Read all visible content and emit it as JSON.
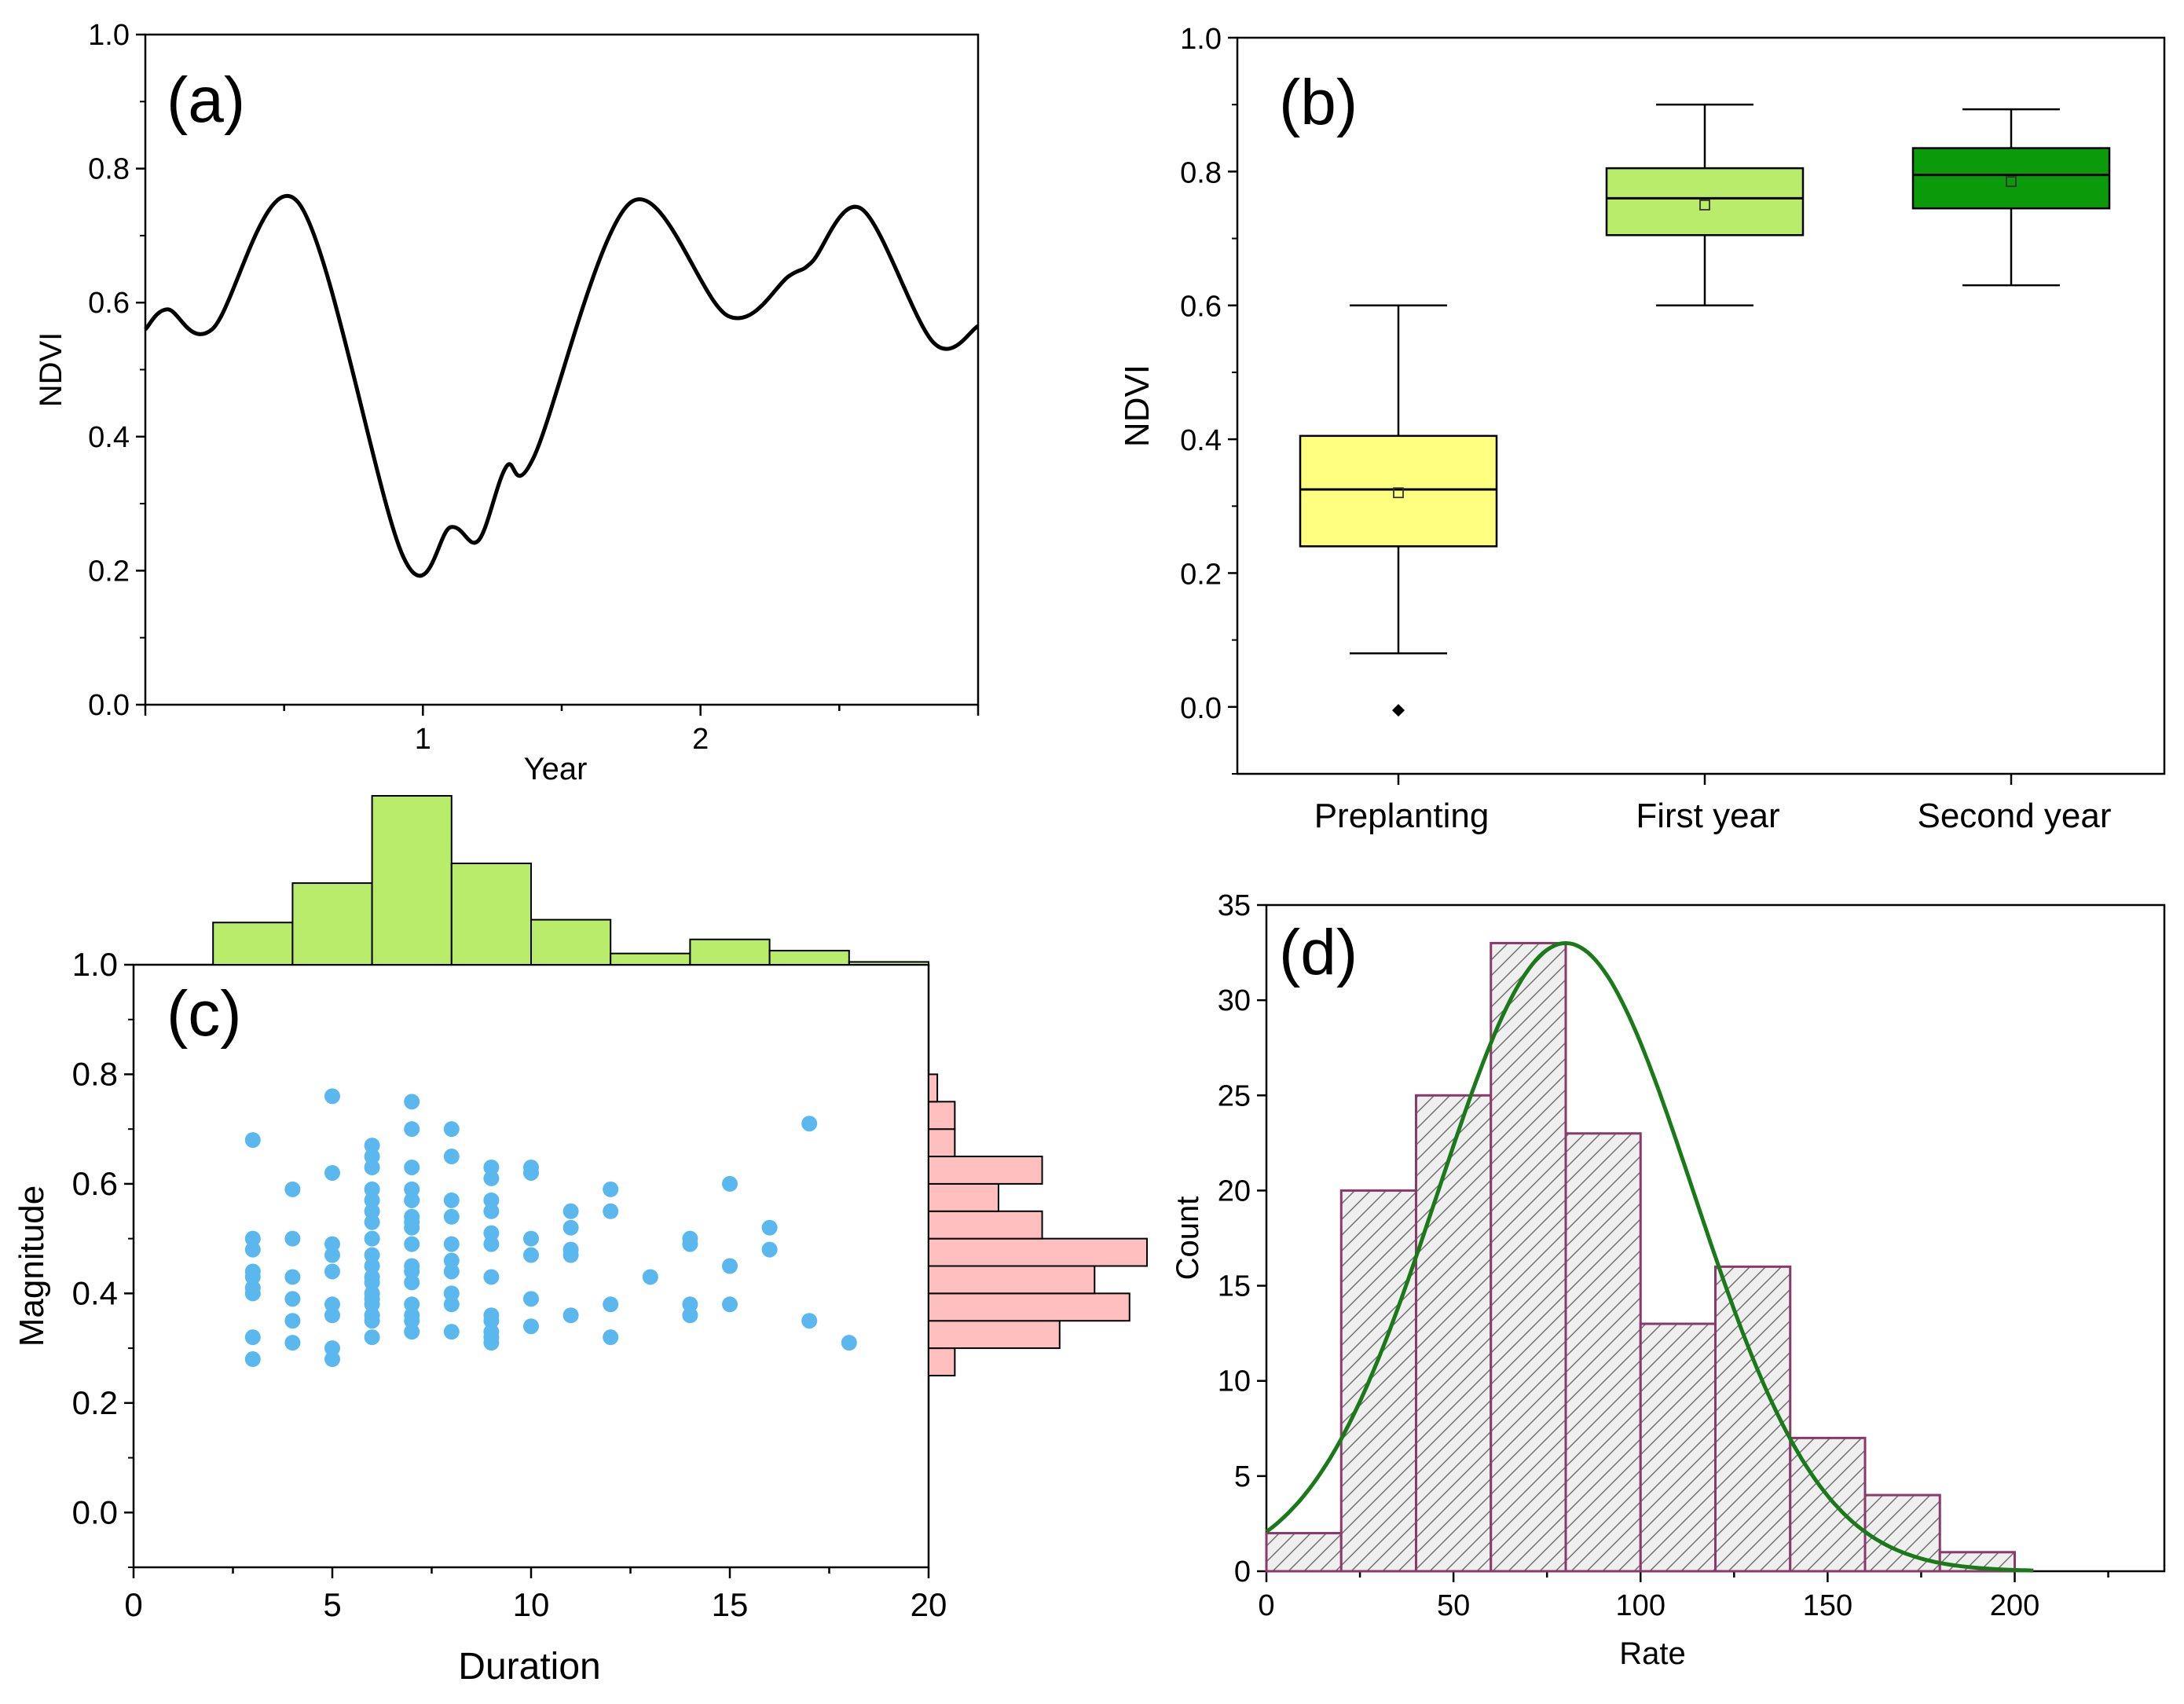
{
  "chart_data": [
    {
      "panel": "a",
      "panel_label": "(a)",
      "type": "line",
      "xlabel": "Year",
      "ylabel": "NDVI",
      "xlim": [
        0,
        3
      ],
      "ylim": [
        0.0,
        1.0
      ],
      "xticks": [
        1,
        2
      ],
      "yticks": [
        0.0,
        0.2,
        0.4,
        0.6,
        0.8,
        1.0
      ],
      "ytick_labels": [
        "0.0",
        "0.2",
        "0.4",
        "0.6",
        "0.8",
        "1.0"
      ],
      "series": [
        {
          "name": "NDVI",
          "color": "#000000",
          "x": [
            0.0,
            0.08,
            0.24,
            0.55,
            0.93,
            1.1,
            1.2,
            1.3,
            1.4,
            1.75,
            2.1,
            2.32,
            2.4,
            2.58,
            2.84,
            3.0
          ],
          "y": [
            0.56,
            0.59,
            0.56,
            0.75,
            0.22,
            0.265,
            0.245,
            0.355,
            0.37,
            0.75,
            0.58,
            0.64,
            0.66,
            0.74,
            0.54,
            0.565
          ]
        }
      ]
    },
    {
      "panel": "b",
      "panel_label": "(b)",
      "type": "box",
      "ylabel": "NDVI",
      "ylim": [
        -0.1,
        1.0
      ],
      "yticks": [
        0.0,
        0.2,
        0.4,
        0.6,
        0.8,
        1.0
      ],
      "ytick_labels": [
        "0.0",
        "0.2",
        "0.4",
        "0.6",
        "0.8",
        "1.0"
      ],
      "categories": [
        "Preplanting",
        "First year",
        "Second year"
      ],
      "boxes": [
        {
          "whislo": 0.08,
          "q1": 0.24,
          "med": 0.325,
          "mean": 0.32,
          "q3": 0.405,
          "whishi": 0.6,
          "fliers": [
            -0.005
          ],
          "color": "#ffff80"
        },
        {
          "whislo": 0.6,
          "q1": 0.705,
          "med": 0.76,
          "mean": 0.75,
          "q3": 0.805,
          "whishi": 0.9,
          "fliers": [],
          "color": "#b8ec6a"
        },
        {
          "whislo": 0.63,
          "q1": 0.745,
          "med": 0.795,
          "mean": 0.785,
          "q3": 0.835,
          "whishi": 0.893,
          "fliers": [],
          "color": "#0a9a0a"
        }
      ]
    },
    {
      "panel": "c",
      "panel_label": "(c)",
      "type": "scatter",
      "xlabel": "Duration",
      "ylabel": "Magnitude",
      "xlim": [
        0,
        20
      ],
      "ylim": [
        -0.1,
        1.0
      ],
      "xticks": [
        0,
        5,
        10,
        15,
        20
      ],
      "yticks": [
        0.0,
        0.2,
        0.4,
        0.6,
        0.8,
        1.0
      ],
      "ytick_labels": [
        "0.0",
        "0.2",
        "0.4",
        "0.6",
        "0.8",
        "1.0"
      ],
      "point_color": "#5ab8ef",
      "points": [
        [
          3,
          0.68
        ],
        [
          3,
          0.5
        ],
        [
          3,
          0.48
        ],
        [
          3,
          0.44
        ],
        [
          3,
          0.43
        ],
        [
          3,
          0.41
        ],
        [
          3,
          0.4
        ],
        [
          3,
          0.32
        ],
        [
          3,
          0.28
        ],
        [
          4,
          0.59
        ],
        [
          4,
          0.5
        ],
        [
          4,
          0.43
        ],
        [
          4,
          0.39
        ],
        [
          4,
          0.35
        ],
        [
          4,
          0.31
        ],
        [
          5,
          0.76
        ],
        [
          5,
          0.62
        ],
        [
          5,
          0.49
        ],
        [
          5,
          0.47
        ],
        [
          5,
          0.44
        ],
        [
          5,
          0.38
        ],
        [
          5,
          0.36
        ],
        [
          5,
          0.3
        ],
        [
          5,
          0.28
        ],
        [
          6,
          0.67
        ],
        [
          6,
          0.65
        ],
        [
          6,
          0.63
        ],
        [
          6,
          0.59
        ],
        [
          6,
          0.57
        ],
        [
          6,
          0.55
        ],
        [
          6,
          0.53
        ],
        [
          6,
          0.5
        ],
        [
          6,
          0.47
        ],
        [
          6,
          0.45
        ],
        [
          6,
          0.43
        ],
        [
          6,
          0.42
        ],
        [
          6,
          0.4
        ],
        [
          6,
          0.39
        ],
        [
          6,
          0.38
        ],
        [
          6,
          0.36
        ],
        [
          6,
          0.35
        ],
        [
          6,
          0.32
        ],
        [
          7,
          0.75
        ],
        [
          7,
          0.7
        ],
        [
          7,
          0.63
        ],
        [
          7,
          0.59
        ],
        [
          7,
          0.57
        ],
        [
          7,
          0.54
        ],
        [
          7,
          0.53
        ],
        [
          7,
          0.52
        ],
        [
          7,
          0.49
        ],
        [
          7,
          0.45
        ],
        [
          7,
          0.44
        ],
        [
          7,
          0.42
        ],
        [
          7,
          0.38
        ],
        [
          7,
          0.36
        ],
        [
          7,
          0.35
        ],
        [
          7,
          0.33
        ],
        [
          8,
          0.7
        ],
        [
          8,
          0.65
        ],
        [
          8,
          0.57
        ],
        [
          8,
          0.54
        ],
        [
          8,
          0.49
        ],
        [
          8,
          0.46
        ],
        [
          8,
          0.44
        ],
        [
          8,
          0.4
        ],
        [
          8,
          0.38
        ],
        [
          8,
          0.33
        ],
        [
          9,
          0.63
        ],
        [
          9,
          0.61
        ],
        [
          9,
          0.57
        ],
        [
          9,
          0.55
        ],
        [
          9,
          0.51
        ],
        [
          9,
          0.49
        ],
        [
          9,
          0.43
        ],
        [
          9,
          0.36
        ],
        [
          9,
          0.35
        ],
        [
          9,
          0.33
        ],
        [
          9,
          0.32
        ],
        [
          9,
          0.31
        ],
        [
          10,
          0.63
        ],
        [
          10,
          0.62
        ],
        [
          10,
          0.5
        ],
        [
          10,
          0.47
        ],
        [
          10,
          0.39
        ],
        [
          10,
          0.34
        ],
        [
          11,
          0.55
        ],
        [
          11,
          0.52
        ],
        [
          11,
          0.48
        ],
        [
          11,
          0.47
        ],
        [
          11,
          0.36
        ],
        [
          12,
          0.59
        ],
        [
          12,
          0.55
        ],
        [
          12,
          0.38
        ],
        [
          12,
          0.32
        ],
        [
          13,
          0.43
        ],
        [
          14,
          0.5
        ],
        [
          14,
          0.49
        ],
        [
          14,
          0.38
        ],
        [
          14,
          0.36
        ],
        [
          15,
          0.6
        ],
        [
          15,
          0.45
        ],
        [
          15,
          0.38
        ],
        [
          16,
          0.52
        ],
        [
          16,
          0.48
        ],
        [
          17,
          0.71
        ],
        [
          17,
          0.35
        ],
        [
          18,
          0.31
        ]
      ],
      "top_histogram": {
        "color": "#b8ec6a",
        "bin_edges": [
          2,
          4,
          6,
          8,
          10,
          12,
          14,
          16,
          18,
          20
        ],
        "counts": [
          15,
          29,
          60,
          36,
          16,
          4,
          9,
          5,
          1
        ]
      },
      "right_histogram": {
        "color": "#ffbfbf",
        "bin_edges": [
          0.25,
          0.3,
          0.35,
          0.4,
          0.45,
          0.5,
          0.55,
          0.6,
          0.65,
          0.7,
          0.75,
          0.8
        ],
        "counts": [
          3,
          15,
          23,
          19,
          25,
          13,
          8,
          13,
          3,
          3,
          1
        ]
      }
    },
    {
      "panel": "d",
      "panel_label": "(d)",
      "type": "bar",
      "xlabel": "Rate",
      "ylabel": "Count",
      "xlim": [
        0,
        240
      ],
      "ylim": [
        0,
        35
      ],
      "xticks": [
        0,
        50,
        100,
        150,
        200
      ],
      "yticks": [
        0,
        5,
        10,
        15,
        20,
        25,
        30,
        35
      ],
      "bar_edge_color": "#8a3a6a",
      "fit_color": "#1a7a1a",
      "bin_edges": [
        0,
        20,
        40,
        60,
        80,
        100,
        120,
        140,
        160,
        180,
        200
      ],
      "counts": [
        2,
        20,
        25,
        33,
        23,
        13,
        16,
        7,
        4,
        1
      ],
      "normal_fit": {
        "amplitude": 33,
        "mean": 80,
        "sd": 34,
        "x_range": [
          0,
          205
        ]
      }
    }
  ]
}
